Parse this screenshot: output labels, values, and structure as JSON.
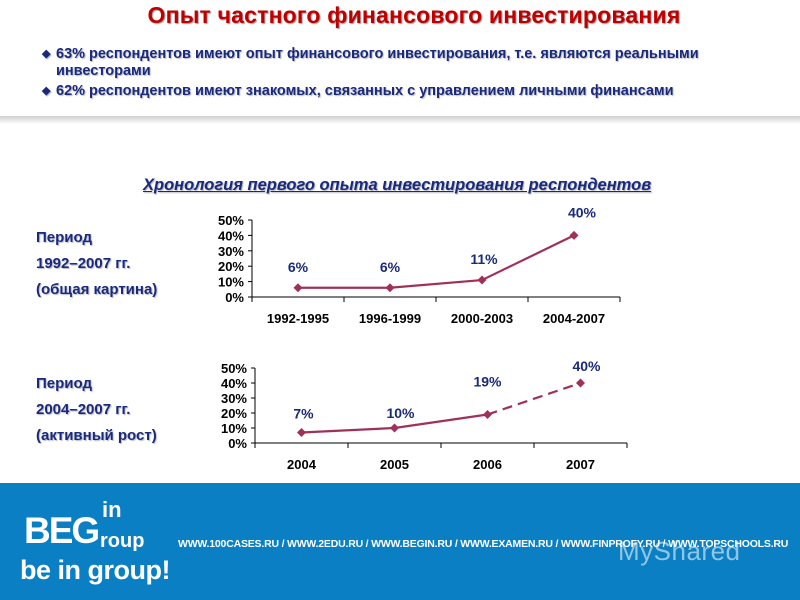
{
  "slide": {
    "title": "Опыт частного финансового инвестирования",
    "bullets": [
      "63% респондентов имеют опыт финансового инвестирования, т.е. являются реальными инвесторами",
      "62% респондентов имеют знакомых, связанных с управлением  личными финансами"
    ],
    "bullet_marker": "◆",
    "subtitle": "Хронология первого опыта инвестирования респондентов"
  },
  "periods": [
    {
      "line1": "Период",
      "line2": "1992–2007 гг.",
      "line3": "(общая картина)"
    },
    {
      "line1": "Период",
      "line2": "2004–2007 гг.",
      "line3": "(активный рост)"
    }
  ],
  "colors": {
    "title": "#c00000",
    "text": "#1a2a7a",
    "series": "#a0305a",
    "footer": "#0a7fc3"
  },
  "chart_data": [
    {
      "type": "line",
      "categories": [
        "1992-1995",
        "1996-1999",
        "2000-2003",
        "2004-2007"
      ],
      "values": [
        6,
        6,
        11,
        40
      ],
      "data_labels": [
        "6%",
        "6%",
        "11%",
        "40%"
      ],
      "yticks": [
        "0%",
        "10%",
        "20%",
        "30%",
        "40%",
        "50%"
      ],
      "ylim": [
        0,
        50
      ],
      "grid": false,
      "legend": "none"
    },
    {
      "type": "line",
      "categories": [
        "2004",
        "2005",
        "2006",
        "2007"
      ],
      "values": [
        7,
        10,
        19,
        40
      ],
      "data_labels": [
        "7%",
        "10%",
        "19%",
        "40%"
      ],
      "yticks": [
        "0%",
        "10%",
        "20%",
        "30%",
        "40%",
        "50%"
      ],
      "ylim": [
        0,
        50
      ],
      "dashed_last_segment": true,
      "grid": false,
      "legend": "none"
    }
  ],
  "footer": {
    "logo_begin": "BEG",
    "logo_in": "in",
    "logo_group": "roup",
    "tagline": "be in group!",
    "sites": "WWW.100CASES.RU  /  WWW.2EDU.RU  /  WWW.BEGIN.RU  /  WWW.EXAMEN.RU  /  WWW.FINPROFY.RU  /  WWW.TOPSCHOOLS.RU",
    "watermark": "MyShared"
  }
}
